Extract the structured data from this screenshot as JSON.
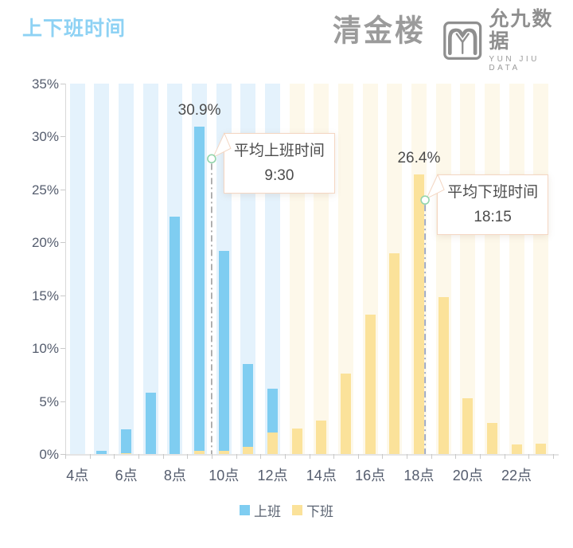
{
  "header": {
    "title": "上下班时间",
    "logo_left_text": "清金楼",
    "logo_right_cn": "允九数据",
    "logo_right_en": "YUN JIU DATA"
  },
  "chart_data": {
    "type": "bar",
    "title": "上下班时间",
    "hours": [
      4,
      5,
      6,
      7,
      8,
      9,
      10,
      11,
      12,
      13,
      14,
      15,
      16,
      17,
      18,
      19,
      20,
      21,
      22,
      23
    ],
    "ylim": [
      0,
      35
    ],
    "grid": false,
    "legend_position": "bottom-center",
    "series": [
      {
        "name": "上班",
        "color": "#7fcdf1",
        "band_color": "#e4f2fc",
        "values": [
          0,
          0.3,
          2.3,
          5.8,
          22.4,
          30.9,
          19.2,
          8.5,
          6.2,
          0,
          0,
          0,
          0,
          0,
          0,
          0,
          0,
          0,
          0,
          0
        ]
      },
      {
        "name": "下班",
        "color": "#fbe29a",
        "band_color": "#fdf8ea",
        "values": [
          0,
          0,
          0.1,
          0,
          0,
          0.3,
          0.3,
          0.7,
          2.0,
          2.4,
          3.2,
          7.6,
          13.2,
          19.0,
          26.4,
          14.8,
          5.3,
          2.9,
          0.9,
          1.0
        ]
      }
    ],
    "band_split_hour": 13,
    "y_ticks": [
      {
        "value": 0,
        "label": "0%"
      },
      {
        "value": 5,
        "label": "5%"
      },
      {
        "value": 10,
        "label": "10%"
      },
      {
        "value": 15,
        "label": "15%"
      },
      {
        "value": 20,
        "label": "20%"
      },
      {
        "value": 25,
        "label": "25%"
      },
      {
        "value": 30,
        "label": "30%"
      },
      {
        "value": 35,
        "label": "35%"
      }
    ],
    "x_ticks": [
      {
        "hour": 4,
        "label": "4点"
      },
      {
        "hour": 6,
        "label": "6点"
      },
      {
        "hour": 8,
        "label": "8点"
      },
      {
        "hour": 10,
        "label": "10点"
      },
      {
        "hour": 12,
        "label": "12点"
      },
      {
        "hour": 14,
        "label": "14点"
      },
      {
        "hour": 16,
        "label": "16点"
      },
      {
        "hour": 18,
        "label": "18点"
      },
      {
        "hour": 20,
        "label": "20点"
      },
      {
        "hour": 22,
        "label": "22点"
      }
    ],
    "peak_annotations": [
      {
        "text": "30.9%",
        "hour": 9,
        "value": 30.9
      },
      {
        "text": "26.4%",
        "hour": 18,
        "value": 26.4
      }
    ],
    "markers": [
      {
        "label": "平均上班时间",
        "time": "9:30",
        "time_value": 9.5,
        "marker_percent": 27.9,
        "line_color": "#a8a8a8",
        "ring_color": "#93d5ac"
      },
      {
        "label": "平均下班时间",
        "time": "18:15",
        "time_value": 18.25,
        "marker_percent": 24.0,
        "line_color": "#9aa6c8",
        "ring_color": "#93d5ac"
      }
    ],
    "legend": [
      {
        "label": "上班",
        "color": "#7fcdf1"
      },
      {
        "label": "下班",
        "color": "#fbe29a"
      }
    ]
  }
}
